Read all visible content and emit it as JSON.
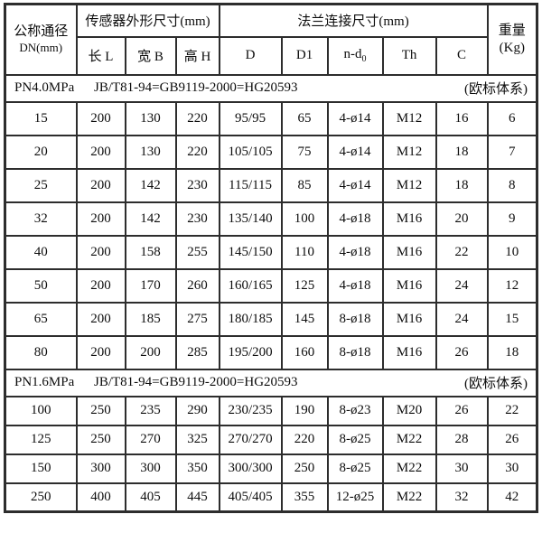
{
  "table": {
    "header": {
      "dn_line1": "公称通径",
      "dn_line2": "DN(mm)",
      "sensor_group": "传感器外形尺寸(mm)",
      "flange_group": "法兰连接尺寸(mm)",
      "weight_line1": "重量",
      "weight_line2": "(Kg)",
      "sub_columns": [
        "长 L",
        "宽 B",
        "高 H",
        "D",
        "D1",
        "n-d",
        "Th",
        "C"
      ],
      "nd0_sub": "0"
    },
    "sections": [
      {
        "pressure": "PN4.0MPa",
        "standard": "JB/T81-94=GB9119-2000=HG20593",
        "system": "(欧标体系)",
        "rows": [
          [
            "15",
            "200",
            "130",
            "220",
            "95/95",
            "65",
            "4-ø14",
            "M12",
            "16",
            "6"
          ],
          [
            "20",
            "200",
            "130",
            "220",
            "105/105",
            "75",
            "4-ø14",
            "M12",
            "18",
            "7"
          ],
          [
            "25",
            "200",
            "142",
            "230",
            "115/115",
            "85",
            "4-ø14",
            "M12",
            "18",
            "8"
          ],
          [
            "32",
            "200",
            "142",
            "230",
            "135/140",
            "100",
            "4-ø18",
            "M16",
            "20",
            "9"
          ],
          [
            "40",
            "200",
            "158",
            "255",
            "145/150",
            "110",
            "4-ø18",
            "M16",
            "22",
            "10"
          ],
          [
            "50",
            "200",
            "170",
            "260",
            "160/165",
            "125",
            "4-ø18",
            "M16",
            "24",
            "12"
          ],
          [
            "65",
            "200",
            "185",
            "275",
            "180/185",
            "145",
            "8-ø18",
            "M16",
            "24",
            "15"
          ],
          [
            "80",
            "200",
            "200",
            "285",
            "195/200",
            "160",
            "8-ø18",
            "M16",
            "26",
            "18"
          ]
        ]
      },
      {
        "pressure": "PN1.6MPa",
        "standard": "JB/T81-94=GB9119-2000=HG20593",
        "system": "(欧标体系)",
        "rows": [
          [
            "100",
            "250",
            "235",
            "290",
            "230/235",
            "190",
            "8-ø23",
            "M20",
            "26",
            "22"
          ],
          [
            "125",
            "250",
            "270",
            "325",
            "270/270",
            "220",
            "8-ø25",
            "M22",
            "28",
            "26"
          ],
          [
            "150",
            "300",
            "300",
            "350",
            "300/300",
            "250",
            "8-ø25",
            "M22",
            "30",
            "30"
          ],
          [
            "250",
            "400",
            "405",
            "445",
            "405/405",
            "355",
            "12-ø25",
            "M22",
            "32",
            "42"
          ]
        ]
      }
    ]
  }
}
